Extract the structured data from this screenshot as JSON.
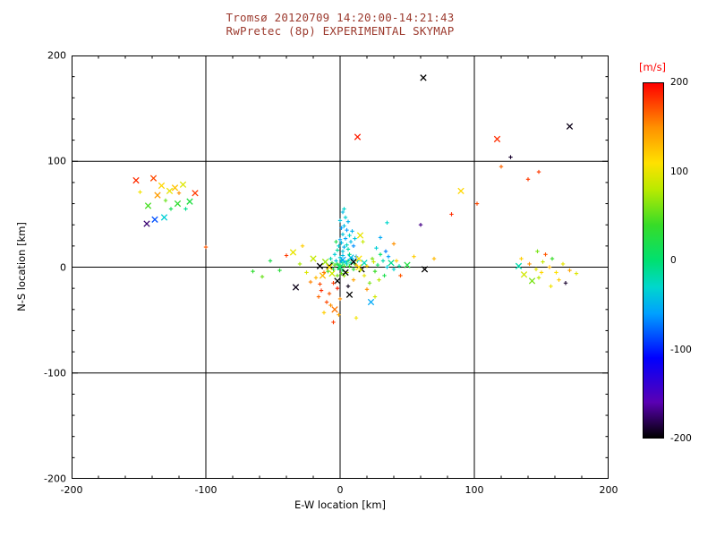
{
  "header": {
    "title_line1": "Tromsø 20120709 14:20:00-14:21:43",
    "title_line2": "RwPretec (8p) EXPERIMENTAL SKYMAP",
    "title_color": "#9c3a2e"
  },
  "chart_data": {
    "type": "scatter",
    "title": "Tromsø 20120709 14:20:00-14:21:43 — RwPretec (8p) EXPERIMENTAL SKYMAP",
    "xlabel": "E-W location [km]",
    "ylabel": "N-S location [km]",
    "xlim": [
      -200,
      200
    ],
    "ylim": [
      -200,
      200
    ],
    "xticks": [
      -200,
      -100,
      0,
      100,
      200
    ],
    "yticks": [
      200,
      100,
      0,
      -100,
      -200
    ],
    "grid": true,
    "legend_position": "none",
    "colorbar": {
      "label": "[m/s]",
      "label_color": "#ff0000",
      "vmin": -200,
      "vmax": 200,
      "ticks": [
        200,
        100,
        0,
        -100,
        -200
      ],
      "colormap_stops": [
        [
          -200,
          "#000000"
        ],
        [
          -160,
          "#5a00b4"
        ],
        [
          -110,
          "#0000ff"
        ],
        [
          -60,
          "#00a0ff"
        ],
        [
          -30,
          "#00d7cd"
        ],
        [
          0,
          "#00e070"
        ],
        [
          40,
          "#37dc28"
        ],
        [
          80,
          "#b9ea00"
        ],
        [
          110,
          "#ffe100"
        ],
        [
          150,
          "#ff9100"
        ],
        [
          200,
          "#ff0000"
        ]
      ]
    },
    "point_format": [
      "x_km",
      "y_km",
      "velocity_ms",
      "marker"
    ],
    "points": [
      [
        -152,
        82,
        185,
        "x"
      ],
      [
        -139,
        84,
        175,
        "x"
      ],
      [
        -133,
        77,
        115,
        "x"
      ],
      [
        -127,
        72,
        100,
        "x"
      ],
      [
        -123,
        75,
        125,
        "x"
      ],
      [
        -136,
        68,
        145,
        "x"
      ],
      [
        -130,
        63,
        55,
        "+"
      ],
      [
        -121,
        60,
        35,
        "x"
      ],
      [
        -112,
        62,
        25,
        "x"
      ],
      [
        -143,
        58,
        45,
        "x"
      ],
      [
        -138,
        45,
        -85,
        "x"
      ],
      [
        -131,
        47,
        -35,
        "x"
      ],
      [
        -144,
        41,
        -175,
        "x"
      ],
      [
        -108,
        70,
        180,
        "x"
      ],
      [
        -117,
        78,
        95,
        "x"
      ],
      [
        -126,
        55,
        15,
        "+"
      ],
      [
        -149,
        71,
        105,
        "+"
      ],
      [
        -120,
        70,
        150,
        "+"
      ],
      [
        -115,
        55,
        -10,
        "+"
      ],
      [
        135,
        8,
        120,
        "+"
      ],
      [
        141,
        3,
        150,
        "+"
      ],
      [
        146,
        -2,
        100,
        "+"
      ],
      [
        151,
        5,
        85,
        "+"
      ],
      [
        156,
        0,
        130,
        "+"
      ],
      [
        161,
        -5,
        110,
        "+"
      ],
      [
        148,
        -10,
        80,
        "+"
      ],
      [
        143,
        -13,
        60,
        "x"
      ],
      [
        166,
        3,
        100,
        "+"
      ],
      [
        171,
        -3,
        140,
        "+"
      ],
      [
        153,
        12,
        170,
        "+"
      ],
      [
        158,
        8,
        40,
        "+"
      ],
      [
        137,
        -7,
        90,
        "x"
      ],
      [
        163,
        -12,
        120,
        "+"
      ],
      [
        147,
        15,
        60,
        "+"
      ],
      [
        133,
        1,
        -20,
        "x"
      ],
      [
        168,
        -15,
        -190,
        "+"
      ],
      [
        176,
        -6,
        95,
        "+"
      ],
      [
        157,
        -18,
        105,
        "+"
      ],
      [
        150,
        -5,
        115,
        "+"
      ],
      [
        13,
        123,
        190,
        "x"
      ],
      [
        62,
        179,
        -200,
        "x"
      ],
      [
        117,
        121,
        185,
        "x"
      ],
      [
        171,
        133,
        -195,
        "x"
      ],
      [
        127,
        104,
        -190,
        "+"
      ],
      [
        140,
        83,
        180,
        "+"
      ],
      [
        102,
        60,
        175,
        "+"
      ],
      [
        83,
        50,
        185,
        "+"
      ],
      [
        90,
        72,
        115,
        "x"
      ],
      [
        120,
        95,
        165,
        "+"
      ],
      [
        -100,
        19,
        170,
        "+"
      ],
      [
        148,
        90,
        180,
        "+"
      ],
      [
        -40,
        11,
        180,
        "+"
      ],
      [
        -33,
        -19,
        -195,
        "x"
      ],
      [
        60,
        40,
        -170,
        "+"
      ],
      [
        35,
        42,
        -30,
        "+"
      ],
      [
        40,
        22,
        150,
        "+"
      ],
      [
        55,
        10,
        120,
        "+"
      ],
      [
        45,
        -8,
        170,
        "+"
      ],
      [
        63,
        -2,
        -200,
        "x"
      ],
      [
        50,
        2,
        25,
        "x"
      ],
      [
        30,
        28,
        -55,
        "+"
      ],
      [
        70,
        8,
        130,
        "+"
      ],
      [
        -65,
        -4,
        35,
        "+"
      ],
      [
        -45,
        -3,
        30,
        "+"
      ],
      [
        -58,
        -9,
        55,
        "+"
      ],
      [
        -52,
        6,
        20,
        "+"
      ],
      [
        -5,
        -52,
        180,
        "+"
      ],
      [
        12,
        -48,
        105,
        "+"
      ],
      [
        23,
        -33,
        -55,
        "x"
      ],
      [
        7,
        -26,
        -200,
        "x"
      ],
      [
        20,
        -21,
        150,
        "+"
      ],
      [
        26,
        -28,
        90,
        "+"
      ],
      [
        0,
        2,
        20,
        "+"
      ],
      [
        2,
        4,
        -10,
        "+"
      ],
      [
        -2,
        3,
        30,
        "+"
      ],
      [
        1,
        6,
        -25,
        "+"
      ],
      [
        3,
        1,
        45,
        "+"
      ],
      [
        -1,
        -1,
        10,
        "+"
      ],
      [
        4,
        5,
        -35,
        "+"
      ],
      [
        -4,
        2,
        50,
        "+"
      ],
      [
        2,
        -3,
        15,
        "+"
      ],
      [
        5,
        3,
        -20,
        "+"
      ],
      [
        6,
        6,
        5,
        "+"
      ],
      [
        -3,
        6,
        -40,
        "+"
      ],
      [
        0,
        9,
        -30,
        "+"
      ],
      [
        2,
        11,
        -45,
        "+"
      ],
      [
        -5,
        -2,
        25,
        "+"
      ],
      [
        7,
        1,
        40,
        "+"
      ],
      [
        8,
        4,
        -15,
        "+"
      ],
      [
        -6,
        4,
        35,
        "+"
      ],
      [
        1,
        -6,
        55,
        "+"
      ],
      [
        3,
        -8,
        70,
        "+"
      ],
      [
        -2,
        -8,
        60,
        "+"
      ],
      [
        5,
        -5,
        80,
        "+"
      ],
      [
        9,
        8,
        -50,
        "+"
      ],
      [
        -7,
        8,
        -20,
        "+"
      ],
      [
        11,
        3,
        10,
        "+"
      ],
      [
        13,
        6,
        -30,
        "+"
      ],
      [
        10,
        -2,
        30,
        "+"
      ],
      [
        -9,
        -4,
        45,
        "+"
      ],
      [
        12,
        10,
        -60,
        "+"
      ],
      [
        -4,
        12,
        -35,
        "+"
      ],
      [
        0,
        0,
        0,
        "x"
      ],
      [
        -8,
        1,
        -200,
        "x"
      ],
      [
        4,
        -5,
        -200,
        "x"
      ],
      [
        -2,
        -13,
        -200,
        "x"
      ],
      [
        10,
        5,
        -200,
        "x"
      ],
      [
        16,
        -2,
        -200,
        "x"
      ],
      [
        -15,
        1,
        -200,
        "x"
      ],
      [
        6,
        -18,
        -195,
        "+"
      ],
      [
        -6,
        -6,
        90,
        "x"
      ],
      [
        8,
        9,
        -45,
        "x"
      ],
      [
        14,
        0,
        110,
        "x"
      ],
      [
        -11,
        5,
        70,
        "x"
      ],
      [
        2,
        7,
        -55,
        "x"
      ],
      [
        18,
        4,
        -25,
        "x"
      ],
      [
        -13,
        -8,
        130,
        "x"
      ],
      [
        2,
        15,
        -40,
        "+"
      ],
      [
        3,
        19,
        -50,
        "+"
      ],
      [
        1,
        23,
        -45,
        "+"
      ],
      [
        4,
        27,
        -55,
        "+"
      ],
      [
        2,
        31,
        -40,
        "+"
      ],
      [
        5,
        35,
        -60,
        "+"
      ],
      [
        3,
        39,
        -45,
        "+"
      ],
      [
        6,
        43,
        -50,
        "+"
      ],
      [
        4,
        47,
        -35,
        "+"
      ],
      [
        2,
        52,
        -45,
        "+"
      ],
      [
        7,
        30,
        -30,
        "+"
      ],
      [
        0,
        26,
        -55,
        "+"
      ],
      [
        -1,
        20,
        -35,
        "+"
      ],
      [
        5,
        21,
        -25,
        "+"
      ],
      [
        8,
        24,
        -45,
        "+"
      ],
      [
        6,
        17,
        -20,
        "+"
      ],
      [
        9,
        34,
        -50,
        "+"
      ],
      [
        1,
        37,
        -60,
        "+"
      ],
      [
        0,
        44,
        -40,
        "+"
      ],
      [
        3,
        55,
        -30,
        "+"
      ],
      [
        -2,
        16,
        -15,
        "+"
      ],
      [
        10,
        20,
        -65,
        "+"
      ],
      [
        7,
        12,
        -10,
        "+"
      ],
      [
        -3,
        24,
        20,
        "+"
      ],
      [
        11,
        27,
        -40,
        "+"
      ],
      [
        -8,
        0,
        115,
        "x"
      ],
      [
        12,
        2,
        130,
        "+"
      ],
      [
        15,
        -3,
        90,
        "+"
      ],
      [
        -12,
        -5,
        160,
        "+"
      ],
      [
        -5,
        -15,
        180,
        "+"
      ],
      [
        -2,
        -20,
        190,
        "+"
      ],
      [
        -8,
        -25,
        170,
        "+"
      ],
      [
        0,
        -30,
        150,
        "+"
      ],
      [
        -14,
        -22,
        185,
        "+"
      ],
      [
        -10,
        -33,
        175,
        "+"
      ],
      [
        -4,
        -40,
        160,
        "x"
      ],
      [
        -12,
        -43,
        120,
        "+"
      ],
      [
        10,
        -12,
        140,
        "+"
      ],
      [
        18,
        -8,
        100,
        "+"
      ],
      [
        20,
        1,
        120,
        "+"
      ],
      [
        25,
        5,
        90,
        "+"
      ],
      [
        22,
        -15,
        60,
        "+"
      ],
      [
        14,
        8,
        110,
        "x"
      ],
      [
        -18,
        -10,
        130,
        "+"
      ],
      [
        -25,
        -5,
        95,
        "+"
      ],
      [
        -20,
        8,
        85,
        "x"
      ],
      [
        -30,
        3,
        75,
        "+"
      ],
      [
        -16,
        -28,
        165,
        "+"
      ],
      [
        -7,
        -36,
        150,
        "+"
      ],
      [
        -1,
        -45,
        140,
        "+"
      ],
      [
        -15,
        -16,
        175,
        "+"
      ],
      [
        -22,
        -14,
        155,
        "+"
      ],
      [
        28,
        2,
        10,
        "+"
      ],
      [
        32,
        6,
        -20,
        "+"
      ],
      [
        35,
        0,
        -40,
        "+"
      ],
      [
        26,
        -4,
        40,
        "+"
      ],
      [
        30,
        12,
        0,
        "+"
      ],
      [
        38,
        4,
        -10,
        "x"
      ],
      [
        24,
        8,
        60,
        "+"
      ],
      [
        33,
        -8,
        20,
        "+"
      ],
      [
        40,
        -2,
        -30,
        "+"
      ],
      [
        36,
        10,
        -60,
        "+"
      ],
      [
        42,
        6,
        120,
        "+"
      ],
      [
        29,
        -12,
        80,
        "+"
      ],
      [
        44,
        1,
        -15,
        "+"
      ],
      [
        34,
        15,
        -70,
        "+"
      ],
      [
        27,
        18,
        -35,
        "+"
      ],
      [
        15,
        30,
        100,
        "x"
      ],
      [
        17,
        24,
        85,
        "+"
      ],
      [
        -28,
        20,
        120,
        "+"
      ],
      [
        -35,
        14,
        100,
        "x"
      ]
    ]
  }
}
